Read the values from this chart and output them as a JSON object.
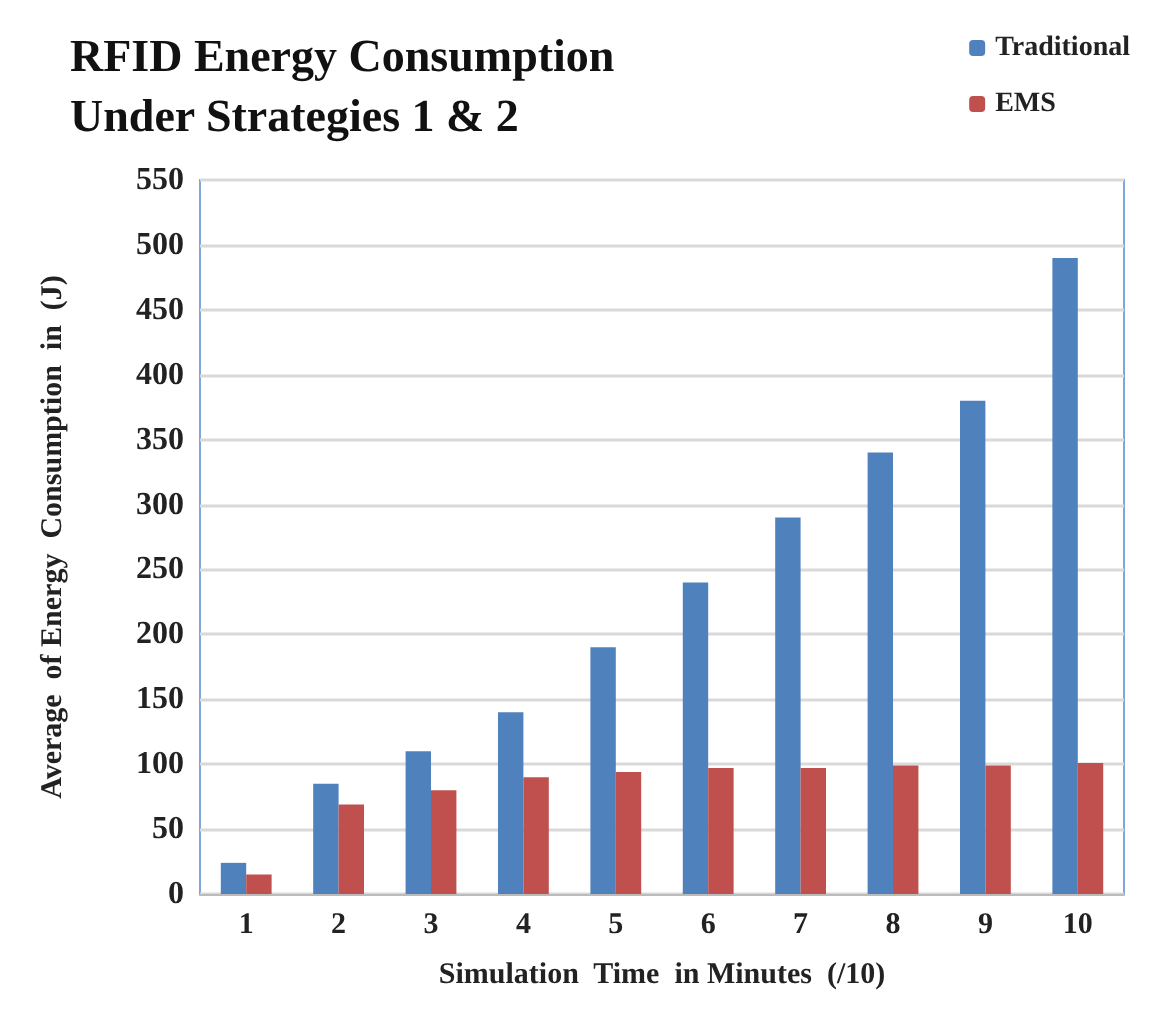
{
  "chart_data": {
    "type": "bar",
    "title": "RFID Energy Consumption\nUnder Strategies 1 & 2",
    "xlabel": "Simulation  Time  in Minutes  (/10)",
    "ylabel": "Average  of Energy  Consumption  in  (J)",
    "categories": [
      "1",
      "2",
      "3",
      "4",
      "5",
      "6",
      "7",
      "8",
      "9",
      "10"
    ],
    "series": [
      {
        "name": "Traditional",
        "color": "#4f81bd",
        "values": [
          24,
          85,
          110,
          140,
          190,
          240,
          290,
          340,
          380,
          490
        ]
      },
      {
        "name": "EMS",
        "color": "#c0504d",
        "values": [
          15,
          69,
          80,
          90,
          94,
          97,
          97,
          99,
          99,
          101
        ]
      }
    ],
    "ylim": [
      0,
      550
    ],
    "yticks": [
      0,
      50,
      100,
      150,
      200,
      250,
      300,
      350,
      400,
      450,
      500,
      550
    ],
    "grid": "y",
    "legend": "top right"
  }
}
